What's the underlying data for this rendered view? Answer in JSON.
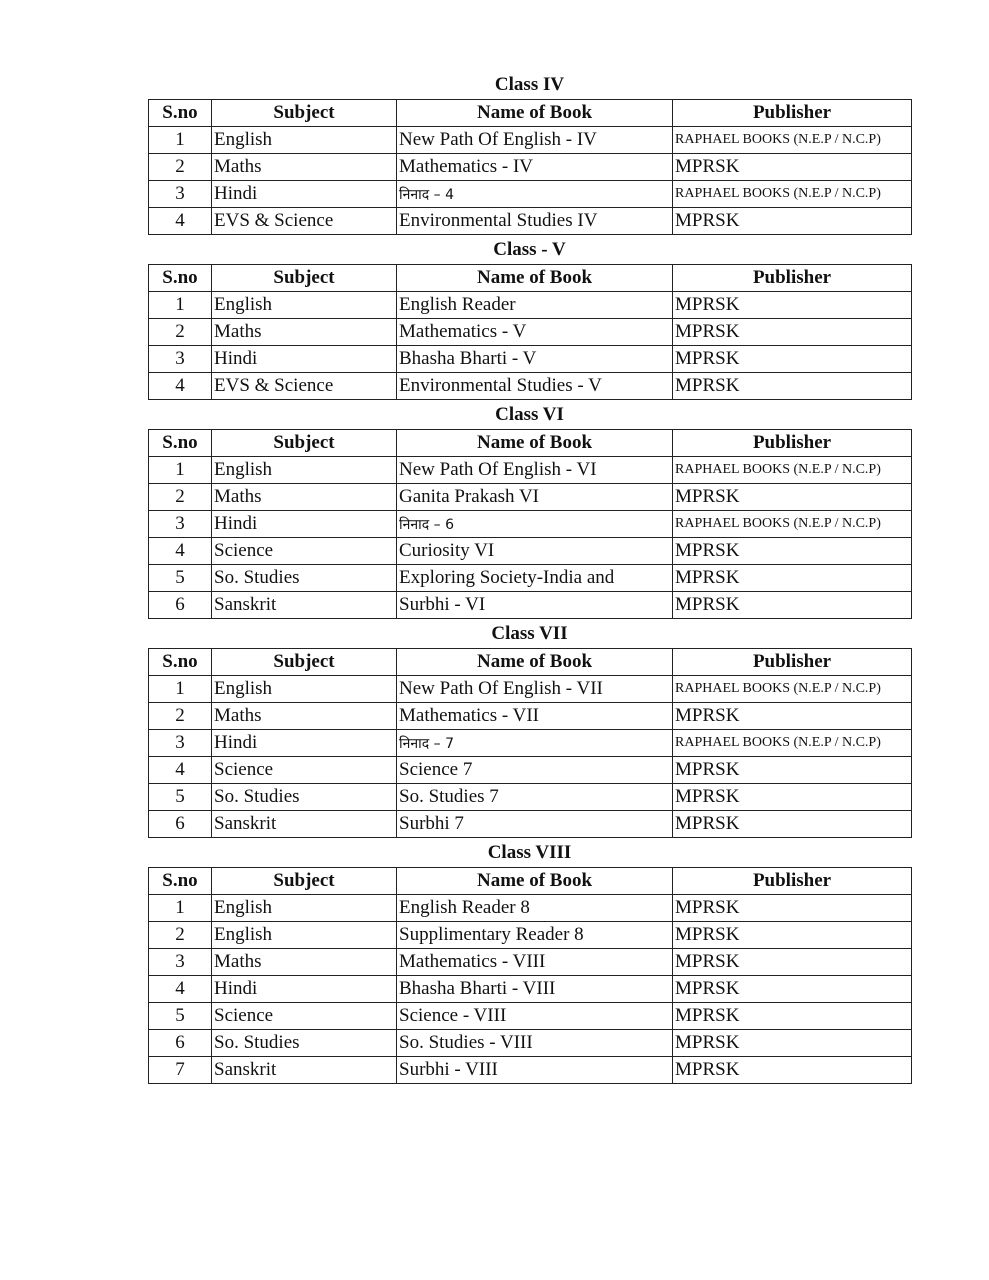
{
  "headers": [
    "S.no",
    "Subject",
    "Name of Book",
    "Publisher"
  ],
  "sections": [
    {
      "title": "Class IV",
      "rows": [
        [
          "1",
          "English",
          "New Path Of English - IV",
          "RAPHAEL BOOKS (N.E.P / N.C.P)"
        ],
        [
          "2",
          "Maths",
          "Mathematics - IV",
          "MPRSK"
        ],
        [
          "3",
          "Hindi",
          "निनाद – 4",
          "RAPHAEL BOOKS (N.E.P / N.C.P)"
        ],
        [
          "4",
          "EVS & Science",
          "Environmental Studies IV",
          "MPRSK"
        ]
      ]
    },
    {
      "title": "Class - V",
      "rows": [
        [
          "1",
          "English",
          "English Reader",
          "MPRSK"
        ],
        [
          "2",
          "Maths",
          "Mathematics - V",
          "MPRSK"
        ],
        [
          "3",
          "Hindi",
          "Bhasha Bharti - V",
          "MPRSK"
        ],
        [
          "4",
          "EVS & Science",
          "Environmental Studies - V",
          "MPRSK"
        ]
      ]
    },
    {
      "title": "Class VI",
      "rows": [
        [
          "1",
          "English",
          "New Path Of English - VI",
          "RAPHAEL BOOKS (N.E.P / N.C.P)"
        ],
        [
          "2",
          "Maths",
          "Ganita Prakash VI",
          "MPRSK"
        ],
        [
          "3",
          "Hindi",
          "निनाद – 6",
          "RAPHAEL BOOKS (N.E.P / N.C.P)"
        ],
        [
          "4",
          "Science",
          "Curiosity VI",
          "MPRSK"
        ],
        [
          "5",
          "So. Studies",
          "Exploring Society-India and",
          "MPRSK"
        ],
        [
          "6",
          "Sanskrit",
          "Surbhi - VI",
          "MPRSK"
        ]
      ]
    },
    {
      "title": "Class VII",
      "rows": [
        [
          "1",
          "English",
          "New Path Of English - VII",
          "RAPHAEL BOOKS (N.E.P / N.C.P)"
        ],
        [
          "2",
          "Maths",
          "Mathematics - VII",
          "MPRSK"
        ],
        [
          "3",
          "Hindi",
          "निनाद – 7",
          "RAPHAEL BOOKS (N.E.P / N.C.P)"
        ],
        [
          "4",
          "Science",
          "Science 7",
          "MPRSK"
        ],
        [
          "5",
          "So. Studies",
          "So. Studies 7",
          "MPRSK"
        ],
        [
          "6",
          "Sanskrit",
          "Surbhi 7",
          "MPRSK"
        ]
      ]
    },
    {
      "title": "Class VIII",
      "rows": [
        [
          "1",
          "English",
          "English Reader 8",
          "MPRSK"
        ],
        [
          "2",
          "English",
          "Supplimentary Reader 8",
          "MPRSK"
        ],
        [
          "3",
          "Maths",
          "Mathematics - VIII",
          "MPRSK"
        ],
        [
          "4",
          "Hindi",
          "Bhasha Bharti - VIII",
          "MPRSK"
        ],
        [
          "5",
          "Science",
          "Science - VIII",
          "MPRSK"
        ],
        [
          "6",
          "So. Studies",
          "So. Studies - VIII",
          "MPRSK"
        ],
        [
          "7",
          "Sanskrit",
          "Surbhi - VIII",
          "MPRSK"
        ]
      ]
    }
  ]
}
